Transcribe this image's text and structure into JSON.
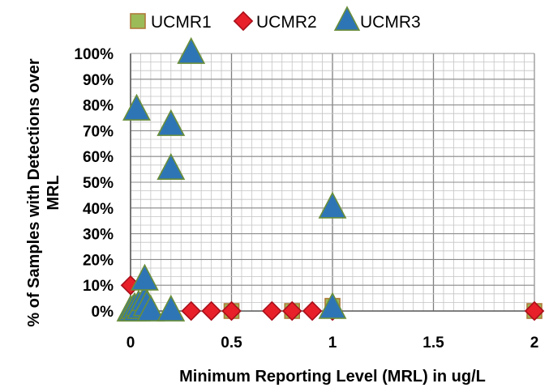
{
  "chart_data": {
    "type": "scatter",
    "xlabel": "Minimum Reporting Level (MRL) in ug/L",
    "ylabel_lines": [
      "% of Samples with Detections over",
      "MRL"
    ],
    "xlim": [
      0,
      2
    ],
    "ylim": [
      0,
      100
    ],
    "x_ticks": [
      "0",
      "0.5",
      "1",
      "1.5",
      "2"
    ],
    "y_ticks": [
      "0%",
      "10%",
      "20%",
      "30%",
      "40%",
      "50%",
      "60%",
      "70%",
      "80%",
      "90%",
      "100%"
    ],
    "grid": true,
    "legend_position": "top",
    "series": [
      {
        "name": "UCMR1",
        "marker": "square",
        "color": "#9bbb59",
        "stroke": "#b07a3a",
        "x": [
          0.5,
          0.8,
          1.0,
          2.0
        ],
        "y": [
          0,
          0,
          2,
          0
        ]
      },
      {
        "name": "UCMR2",
        "marker": "diamond",
        "color": "#e8202a",
        "stroke": "#a8101a",
        "x": [
          0,
          0.3,
          0.4,
          0.5,
          0.7,
          0.8,
          0.9,
          1.0,
          2.0
        ],
        "y": [
          10,
          0,
          0,
          0,
          0,
          0,
          0,
          0,
          0
        ]
      },
      {
        "name": "UCMR3",
        "marker": "triangle",
        "color": "#2e75b6",
        "stroke": "#6a8e3a",
        "x": [
          0,
          0.01,
          0.02,
          0.03,
          0.04,
          0.05,
          0.07,
          0.08,
          0.1,
          0.03,
          0.07,
          0.2,
          0.2,
          0.2,
          0.3,
          1.0,
          1.0
        ],
        "y": [
          0,
          0,
          1,
          0,
          2,
          1,
          4,
          2,
          0,
          78,
          12,
          72,
          55,
          0,
          100,
          40,
          1
        ]
      }
    ]
  }
}
